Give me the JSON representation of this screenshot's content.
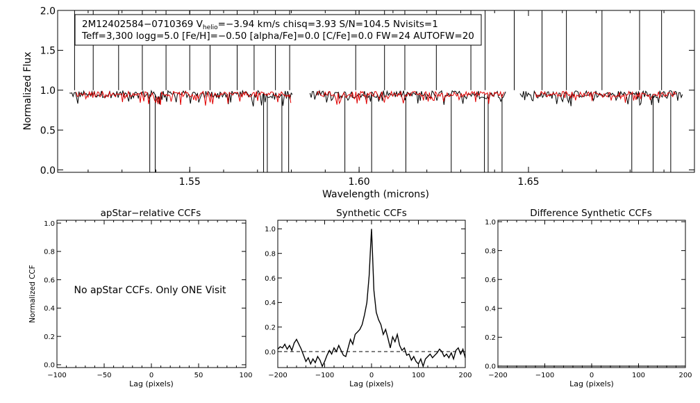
{
  "chart_data": [
    {
      "type": "line",
      "xlabel": "Wavelength (microns)",
      "ylabel": "Normalized Flux",
      "xlim": [
        1.511,
        1.699
      ],
      "ylim": [
        -0.03,
        2.0
      ],
      "x_ticks": [
        "1.55",
        "1.60",
        "1.65"
      ],
      "x_tick_values": [
        1.55,
        1.6,
        1.65
      ],
      "y_ticks": [
        "0.0",
        "0.5",
        "1.0",
        "1.5",
        "2.0"
      ],
      "y_tick_values": [
        0.0,
        0.5,
        1.0,
        1.5,
        2.0
      ],
      "grid": false,
      "legend_box": {
        "line1_pre": "2M12402584−0710369  V",
        "line1_sub": "helio",
        "line1_post": "=−3.94 km/s  chisq=3.93  S/N=104.5  Nvisits=1",
        "line2": "Teff=3,300 logg=5.0 [Fe/H]=−0.50 [alpha/Fe]=0.0 [C/Fe]=0.0 FW=24 AUTOFW=20"
      },
      "chips_microns": [
        [
          1.5145,
          1.5805
        ],
        [
          1.5855,
          1.6435
        ],
        [
          1.6475,
          1.6955
        ]
      ],
      "model_chips_microns": [
        [
          1.5165,
          1.58
        ],
        [
          1.5875,
          1.643
        ],
        [
          1.652,
          1.694
        ]
      ],
      "continuum_level": 0.95,
      "series": [
        {
          "color": "#000000"
        },
        {
          "color": "#e00000"
        }
      ],
      "deep_absorption_microns": [
        1.5382,
        1.5398,
        1.5718,
        1.5729,
        1.5772,
        1.5792,
        1.5958,
        1.6037,
        1.6138,
        1.6272,
        1.637,
        1.6381,
        1.6422,
        1.6805,
        1.6868,
        1.692
      ],
      "emission_spikes_microns": [
        1.516,
        1.5215,
        1.529,
        1.536,
        1.543,
        1.55,
        1.556,
        1.564,
        1.569,
        1.5753,
        1.5795,
        1.599,
        1.6075,
        1.6135,
        1.6228,
        1.633,
        1.6372,
        1.6458,
        1.654,
        1.6612,
        1.6717,
        1.6828,
        1.6893
      ]
    },
    {
      "type": "line",
      "title": "apStar−relative CCFs",
      "xlabel": "Lag (pixels)",
      "ylabel": "Normalized CCF",
      "xlim": [
        -100,
        100
      ],
      "ylim": [
        -0.02,
        1.02
      ],
      "x_ticks": [
        "−100",
        "−50",
        "0",
        "50",
        "100"
      ],
      "x_tick_values": [
        -100,
        -50,
        0,
        50,
        100
      ],
      "y_ticks": [
        "0.0",
        "0.2",
        "0.4",
        "0.6",
        "0.8",
        "1.0"
      ],
      "y_tick_values": [
        0.0,
        0.2,
        0.4,
        0.6,
        0.8,
        1.0
      ],
      "annotation": "No apStar CCFs.  Only ONE Visit",
      "series": []
    },
    {
      "type": "line",
      "title": "Synthetic CCFs",
      "xlabel": "Lag (pixels)",
      "xlim": [
        -200,
        200
      ],
      "ylim": [
        -0.13,
        1.07
      ],
      "x_ticks": [
        "−200",
        "−100",
        "0",
        "100",
        "200"
      ],
      "x_tick_values": [
        -200,
        -100,
        0,
        100,
        200
      ],
      "y_ticks": [
        "0.0",
        "0.2",
        "0.4",
        "0.6",
        "0.8",
        "1.0"
      ],
      "y_tick_values": [
        0.0,
        0.2,
        0.4,
        0.6,
        0.8,
        1.0
      ],
      "zero_line": "dashed",
      "series": [
        {
          "lag": [
            -200,
            -195,
            -190,
            -185,
            -180,
            -175,
            -170,
            -165,
            -160,
            -155,
            -150,
            -145,
            -140,
            -135,
            -130,
            -125,
            -120,
            -115,
            -110,
            -105,
            -100,
            -95,
            -90,
            -85,
            -80,
            -75,
            -70,
            -65,
            -60,
            -55,
            -50,
            -45,
            -40,
            -35,
            -30,
            -25,
            -20,
            -15,
            -10,
            -5,
            -2,
            0,
            2,
            5,
            10,
            15,
            20,
            25,
            30,
            35,
            40,
            45,
            50,
            55,
            60,
            65,
            70,
            75,
            80,
            85,
            90,
            95,
            100,
            105,
            110,
            115,
            120,
            125,
            130,
            135,
            140,
            145,
            150,
            155,
            160,
            165,
            170,
            175,
            180,
            185,
            190,
            195,
            200
          ],
          "ccf": [
            0.02,
            0.04,
            0.03,
            0.06,
            0.02,
            0.05,
            0.01,
            0.07,
            0.1,
            0.06,
            0.02,
            -0.03,
            -0.08,
            -0.05,
            -0.1,
            -0.06,
            -0.09,
            -0.04,
            -0.07,
            -0.12,
            -0.08,
            -0.03,
            0.01,
            -0.02,
            0.03,
            0.0,
            0.05,
            0.01,
            -0.03,
            -0.04,
            0.03,
            0.1,
            0.06,
            0.14,
            0.16,
            0.18,
            0.22,
            0.3,
            0.4,
            0.62,
            0.85,
            1.0,
            0.8,
            0.5,
            0.32,
            0.26,
            0.22,
            0.14,
            0.18,
            0.11,
            0.03,
            0.12,
            0.08,
            0.14,
            0.05,
            0.01,
            0.03,
            -0.03,
            -0.02,
            -0.07,
            -0.04,
            -0.08,
            -0.1,
            -0.06,
            -0.12,
            -0.06,
            -0.04,
            -0.02,
            -0.05,
            -0.03,
            -0.01,
            0.02,
            0.0,
            -0.04,
            -0.02,
            -0.05,
            -0.01,
            -0.06,
            0.01,
            0.03,
            -0.02,
            0.02,
            -0.05
          ]
        }
      ]
    },
    {
      "type": "line",
      "title": "Difference Synthetic CCFs",
      "xlabel": "Lag (pixels)",
      "xlim": [
        -200,
        200
      ],
      "ylim": [
        -0.01,
        1.01
      ],
      "x_ticks": [
        "−200",
        "−100",
        "0",
        "100",
        "200"
      ],
      "x_tick_values": [
        -200,
        -100,
        0,
        100,
        200
      ],
      "y_ticks": [
        "0.0",
        "0.2",
        "0.4",
        "0.6",
        "0.8",
        "1.0"
      ],
      "y_tick_values": [
        0.0,
        0.2,
        0.4,
        0.6,
        0.8,
        1.0
      ],
      "zero_line": "solid",
      "series": []
    }
  ]
}
